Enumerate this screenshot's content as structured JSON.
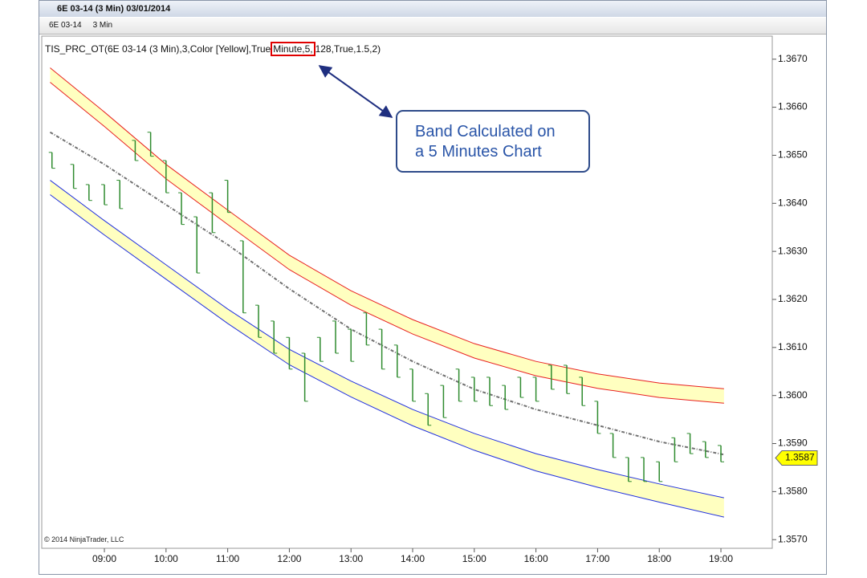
{
  "window": {
    "title": "6E 03-14 (3 Min)  03/01/2014"
  },
  "toolbar": {
    "instrument": "6E 03-14",
    "interval": "3 Min"
  },
  "indicator_label": {
    "prefix": "TIS_PRC_OT(6E 03-14 (3 Min),3,Color [Yellow],True",
    "highlight": "Minute,5,",
    "suffix": "128,True,1.5,2)"
  },
  "callout": {
    "lines": [
      "Band Calculated on",
      "a 5 Minutes Chart"
    ]
  },
  "copyright": "© 2014 NinjaTrader, LLC",
  "chart_data": {
    "type": "ohlc",
    "xlim": [
      7.984,
      19.833
    ],
    "xticks": [
      {
        "value": 9,
        "label": "09:00"
      },
      {
        "value": 10,
        "label": "10:00"
      },
      {
        "value": 11,
        "label": "11:00"
      },
      {
        "value": 12,
        "label": "12:00"
      },
      {
        "value": 13,
        "label": "13:00"
      },
      {
        "value": 14,
        "label": "14:00"
      },
      {
        "value": 15,
        "label": "15:00"
      },
      {
        "value": 16,
        "label": "16:00"
      },
      {
        "value": 17,
        "label": "17:00"
      },
      {
        "value": 18,
        "label": "18:00"
      },
      {
        "value": 19,
        "label": "19:00"
      }
    ],
    "ylim": [
      1.35682,
      1.36748
    ],
    "yticks": [
      {
        "value": 1.367,
        "label": "1.3670"
      },
      {
        "value": 1.366,
        "label": "1.3660"
      },
      {
        "value": 1.365,
        "label": "1.3650"
      },
      {
        "value": 1.364,
        "label": "1.3640"
      },
      {
        "value": 1.363,
        "label": "1.3630"
      },
      {
        "value": 1.362,
        "label": "1.3620"
      },
      {
        "value": 1.361,
        "label": "1.3610"
      },
      {
        "value": 1.36,
        "label": "1.3600"
      },
      {
        "value": 1.359,
        "label": "1.3590"
      },
      {
        "value": 1.358,
        "label": "1.3580"
      },
      {
        "value": 1.357,
        "label": "1.3570"
      }
    ],
    "band_fill": "#ffffc0",
    "x": [
      8.12,
      9,
      10,
      11,
      12,
      13,
      14,
      15,
      16,
      17,
      18,
      19.05
    ],
    "series": [
      {
        "color": "#e82020",
        "values": [
          1.36682,
          1.3659,
          1.36481,
          1.36386,
          1.36292,
          1.36218,
          1.36158,
          1.36108,
          1.36071,
          1.36045,
          1.36026,
          1.36014
        ]
      },
      {
        "color": "#e82020",
        "values": [
          1.36652,
          1.3656,
          1.36451,
          1.36356,
          1.36262,
          1.36188,
          1.36128,
          1.36078,
          1.36041,
          1.36015,
          1.35996,
          1.35984
        ]
      },
      {
        "color": "#2030e0",
        "values": [
          1.36448,
          1.36364,
          1.36272,
          1.3618,
          1.36096,
          1.3603,
          1.35971,
          1.35921,
          1.35879,
          1.35846,
          1.35816,
          1.35787
        ]
      },
      {
        "color": "#2030e0",
        "values": [
          1.36418,
          1.36334,
          1.36242,
          1.3615,
          1.36064,
          1.35997,
          1.35937,
          1.35886,
          1.35843,
          1.35809,
          1.35778,
          1.35747
        ]
      },
      {
        "color": "#707070",
        "dashed": true,
        "values": [
          1.36548,
          1.36481,
          1.36397,
          1.36314,
          1.36222,
          1.36138,
          1.36071,
          1.36013,
          1.35971,
          1.35938,
          1.35904,
          1.35877
        ]
      }
    ],
    "bars": {
      "color": "#2e8b2e",
      "x": [
        8.15,
        8.5,
        8.75,
        9,
        9.25,
        9.5,
        9.75,
        10,
        10.25,
        10.5,
        10.75,
        11,
        11.25,
        11.5,
        11.75,
        12,
        12.25,
        12.5,
        12.75,
        13,
        13.25,
        13.5,
        13.75,
        14,
        14.25,
        14.5,
        14.75,
        15,
        15.25,
        15.5,
        15.75,
        16,
        16.25,
        16.5,
        16.75,
        17,
        17.25,
        17.5,
        17.75,
        18,
        18.25,
        18.5,
        18.75,
        19
      ],
      "high": [
        1.36506,
        1.36481,
        1.36439,
        1.36439,
        1.36448,
        1.36531,
        1.36548,
        1.36489,
        1.36422,
        1.36372,
        1.36422,
        1.36448,
        1.36322,
        1.36188,
        1.36155,
        1.36121,
        1.36088,
        1.36121,
        1.36155,
        1.36138,
        1.36172,
        1.36138,
        1.36105,
        1.36055,
        1.36004,
        1.36021,
        1.36055,
        1.36038,
        1.36038,
        1.36021,
        1.36038,
        1.36038,
        1.36063,
        1.36063,
        1.36038,
        1.35988,
        1.35921,
        1.35871,
        1.35871,
        1.35862,
        1.35912,
        1.35921,
        1.35904,
        1.35896
      ],
      "low": [
        1.36473,
        1.36431,
        1.36406,
        1.36397,
        1.36389,
        1.36489,
        1.36498,
        1.36422,
        1.36356,
        1.36255,
        1.36339,
        1.36381,
        1.36172,
        1.36121,
        1.36088,
        1.36055,
        1.35988,
        1.36071,
        1.36088,
        1.36071,
        1.36105,
        1.36055,
        1.36038,
        1.35988,
        1.35938,
        1.35954,
        1.35988,
        1.35988,
        1.35979,
        1.35971,
        1.35996,
        1.35988,
        1.36013,
        1.36004,
        1.35979,
        1.35921,
        1.35871,
        1.35821,
        1.35821,
        1.35821,
        1.35862,
        1.35879,
        1.35871,
        1.35862
      ]
    },
    "last_price": 1.3587,
    "last_price_color": "#ffff00"
  }
}
